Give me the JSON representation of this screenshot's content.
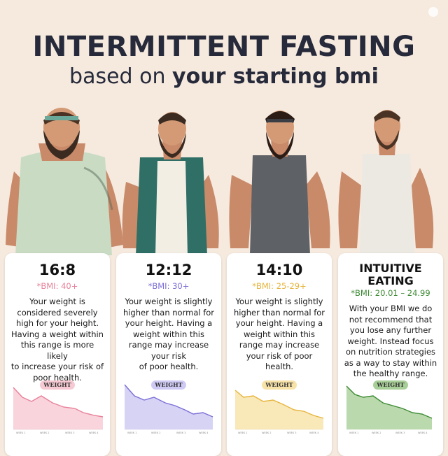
{
  "header": {
    "title": "INTERMITTENT FASTING",
    "subtitle_prefix": "based on",
    "subtitle_bold": "your starting bmi"
  },
  "colors": {
    "background": "#f6eadf",
    "title": "#262a3a",
    "pink": "#e8809a",
    "purple": "#7b6fd6",
    "orange": "#e7b43c",
    "green": "#3d8a34"
  },
  "cards": [
    {
      "plan": "16:8",
      "bmi": "*BMI: 40+",
      "desc": [
        "Your weight is",
        "considered severely",
        "high for your height.",
        "Having a weight within",
        "this range is more likely",
        "to increase your risk of",
        "poor health."
      ],
      "pill": "WEIGHT",
      "week_labels": [
        "WEEK 1",
        "WEEK 2",
        "WEEK 3",
        "WEEK 4"
      ]
    },
    {
      "plan": "12:12",
      "bmi": "*BMI: 30+",
      "desc": [
        "Your weight is slightly",
        "higher than normal for",
        "your height. Having a",
        "weight within this",
        "range may increase",
        "your risk",
        "of poor health."
      ],
      "pill": "WEIGHT",
      "week_labels": [
        "WEEK 1",
        "WEEK 2",
        "WEEK 3",
        "WEEK 4"
      ]
    },
    {
      "plan": "14:10",
      "bmi": "*BMI: 25-29+",
      "desc": [
        "Your weight is slightly",
        "higher than normal for",
        "your height. Having a",
        "weight within this",
        "range may increase",
        "your risk of poor health."
      ],
      "pill": "WEIGHT",
      "week_labels": [
        "WEEK 1",
        "WEEK 2",
        "WEEK 3",
        "WEEK 4"
      ]
    },
    {
      "plan_line1": "INTUITIVE",
      "plan_line2": "EATING",
      "bmi": "*BMI: 20.01 – 24.99",
      "desc": [
        "With your BMI we do",
        "not recommend that",
        "you lose any further",
        "weight. Instead focus",
        "on nutrition strategies",
        "as a way to stay within",
        "the healthy range."
      ],
      "pill": "WEIGHT",
      "week_labels": [
        "WEEK 1",
        "WEEK 2",
        "WEEK 3",
        "WEEK 4"
      ]
    }
  ]
}
